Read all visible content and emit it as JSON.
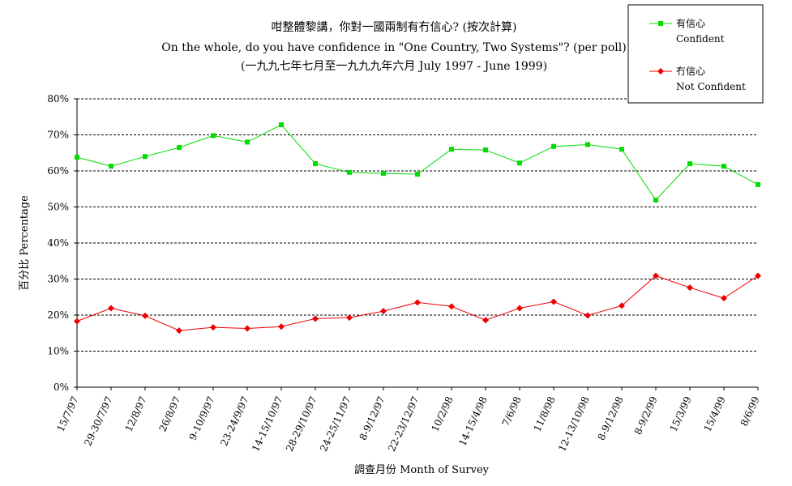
{
  "chart_data": {
    "type": "line",
    "title": "咁整體黎講，你對一國兩制有冇信心? (按次計算)",
    "subtitle": "On the whole, do you have confidence in \"One Country, Two Systems\"? (per poll)",
    "subtitle2": "(一九九七年七月至一九九九年六月 July 1997 - June 1999)",
    "xlabel": "調查月份 Month of Survey",
    "ylabel": "百分比 Percentage",
    "ylim": [
      0,
      80
    ],
    "yticks": [
      "0%",
      "10%",
      "20%",
      "30%",
      "40%",
      "50%",
      "60%",
      "70%",
      "80%"
    ],
    "grid": true,
    "legend_position": "top-right",
    "categories": [
      "15/7/97",
      "29-30/7/97",
      "12/8/97",
      "26/8/97",
      "9-10/9/97",
      "23-24/9/97",
      "14-15/10/97",
      "28-29/10/97",
      "24-25/11/97",
      "8-9/12/97",
      "22-23/12/97",
      "10/2/98",
      "14-15/4/98",
      "7/6/98",
      "11/8/98",
      "12-13/10/98",
      "8-9/12/98",
      "8-9/2/99",
      "15/3/99",
      "15/4/99",
      "8/6/99"
    ],
    "series": [
      {
        "name_zh": "有信心",
        "name_en": "Confident",
        "color": "#00dd00",
        "marker": "square",
        "values": [
          63.8,
          61.3,
          64.0,
          66.5,
          69.8,
          68.0,
          72.8,
          62.0,
          59.6,
          59.3,
          59.1,
          66.0,
          65.8,
          62.2,
          66.8,
          67.3,
          66.0,
          51.9,
          62.0,
          61.3,
          56.2
        ]
      },
      {
        "name_zh": "冇信心",
        "name_en": "Not Confident",
        "color": "#ee0000",
        "marker": "diamond",
        "values": [
          18.3,
          21.9,
          19.8,
          15.7,
          16.6,
          16.3,
          16.8,
          19.0,
          19.3,
          21.1,
          23.5,
          22.4,
          18.6,
          21.9,
          23.7,
          19.9,
          22.6,
          30.9,
          27.6,
          24.7,
          30.9
        ]
      }
    ]
  }
}
